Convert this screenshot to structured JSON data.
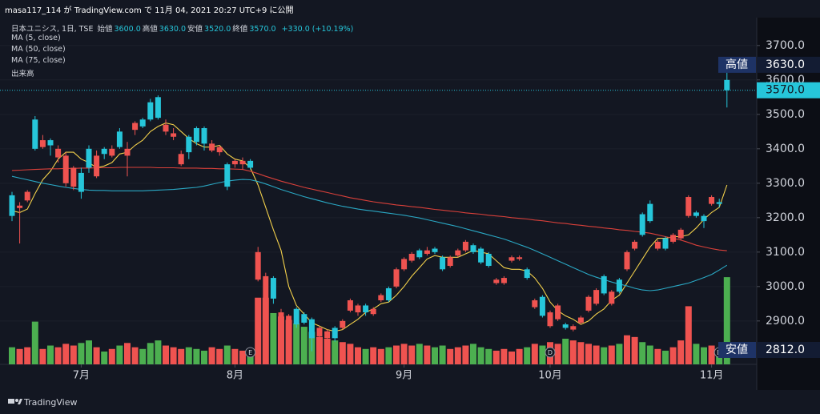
{
  "chart_data": {
    "type": "candlestick",
    "header": "masa117_114 が TradingView.com で 11月 04, 2021 20:27 UTC+9 に公開",
    "symbol": "日本ユニシス, 1日, TSE",
    "ohlc_legend": [
      {
        "label": "始値",
        "value_label": "3600.0"
      },
      {
        "label": "高値",
        "value_label": "3630.0"
      },
      {
        "label": "安値",
        "value_label": "3520.0"
      },
      {
        "label": "終値",
        "value_label": "3570.0"
      }
    ],
    "change": "+330.0 (+10.19%)",
    "footer": "TradingView",
    "up_color": "#ef5350",
    "down_color": "#26c6da",
    "grid": true,
    "ylim": [
      2774,
      3767
    ],
    "yticks": [
      {
        "value": 2900,
        "label": "2900.0"
      },
      {
        "value": 3000,
        "label": "3000.0"
      },
      {
        "value": 3100,
        "label": "3100.0"
      },
      {
        "value": 3200,
        "label": "3200.0"
      },
      {
        "value": 3300,
        "label": "3300.0"
      },
      {
        "value": 3400,
        "label": "3400.0"
      },
      {
        "value": 3500,
        "label": "3500.0"
      },
      {
        "value": 3600,
        "label": "3600.0"
      },
      {
        "value": 3700,
        "label": "3700.0"
      }
    ],
    "xticks": [
      {
        "value": 9,
        "label": "7月"
      },
      {
        "value": 29,
        "label": "8月"
      },
      {
        "value": 51,
        "label": "9月"
      },
      {
        "value": 70,
        "label": "10月"
      },
      {
        "value": 91,
        "label": "11月"
      }
    ],
    "candles": [
      [
        3265,
        3275,
        3190,
        3205
      ],
      [
        3228,
        3245,
        3125,
        3235
      ],
      [
        3250,
        3280,
        3245,
        3275
      ],
      [
        3485,
        3495,
        3395,
        3400
      ],
      [
        3405,
        3440,
        3400,
        3425
      ],
      [
        3425,
        3430,
        3380,
        3410
      ],
      [
        3375,
        3410,
        3360,
        3400
      ],
      [
        3300,
        3390,
        3290,
        3380
      ],
      [
        3290,
        3350,
        3280,
        3345
      ],
      [
        3330,
        3345,
        3255,
        3275
      ],
      [
        3400,
        3410,
        3330,
        3345
      ],
      [
        3320,
        3395,
        3315,
        3380
      ],
      [
        3400,
        3405,
        3370,
        3385
      ],
      [
        3380,
        3410,
        3375,
        3400
      ],
      [
        3450,
        3460,
        3400,
        3405
      ],
      [
        3380,
        3420,
        3320,
        3400
      ],
      [
        3455,
        3480,
        3440,
        3475
      ],
      [
        3485,
        3490,
        3460,
        3465
      ],
      [
        3535,
        3545,
        3480,
        3485
      ],
      [
        3550,
        3555,
        3485,
        3490
      ],
      [
        3450,
        3485,
        3440,
        3470
      ],
      [
        3435,
        3460,
        3425,
        3445
      ],
      [
        3355,
        3395,
        3350,
        3385
      ],
      [
        3435,
        3440,
        3370,
        3390
      ],
      [
        3460,
        3465,
        3410,
        3420
      ],
      [
        3460,
        3465,
        3395,
        3415
      ],
      [
        3395,
        3425,
        3390,
        3415
      ],
      [
        3390,
        3410,
        3380,
        3405
      ],
      [
        3355,
        3360,
        3280,
        3290
      ],
      [
        3355,
        3370,
        3345,
        3365
      ],
      [
        3355,
        3375,
        3340,
        3365
      ],
      [
        3365,
        3370,
        3340,
        3345
      ],
      [
        3020,
        3115,
        3015,
        3100
      ],
      [
        2960,
        3040,
        2955,
        3030
      ],
      [
        3025,
        3030,
        2950,
        2965
      ],
      [
        2900,
        2935,
        2895,
        2925
      ],
      [
        2890,
        2920,
        2885,
        2915
      ],
      [
        2935,
        2940,
        2880,
        2890
      ],
      [
        2920,
        2925,
        2890,
        2895
      ],
      [
        2905,
        2910,
        2812,
        2850
      ],
      [
        2855,
        2885,
        2845,
        2880
      ],
      [
        2850,
        2875,
        2840,
        2870
      ],
      [
        2880,
        2885,
        2840,
        2850
      ],
      [
        2880,
        2905,
        2875,
        2900
      ],
      [
        2930,
        2965,
        2925,
        2960
      ],
      [
        2925,
        2950,
        2915,
        2945
      ],
      [
        2945,
        2950,
        2915,
        2925
      ],
      [
        2920,
        2940,
        2915,
        2935
      ],
      [
        2960,
        2980,
        2955,
        2975
      ],
      [
        2995,
        3000,
        2955,
        2960
      ],
      [
        3000,
        3055,
        2995,
        3050
      ],
      [
        3050,
        3085,
        3045,
        3080
      ],
      [
        3075,
        3100,
        3070,
        3095
      ],
      [
        3105,
        3110,
        3080,
        3085
      ],
      [
        3095,
        3115,
        3090,
        3105
      ],
      [
        3110,
        3115,
        3095,
        3100
      ],
      [
        3085,
        3090,
        3045,
        3050
      ],
      [
        3060,
        3090,
        3055,
        3085
      ],
      [
        3090,
        3110,
        3085,
        3105
      ],
      [
        3105,
        3135,
        3100,
        3130
      ],
      [
        3120,
        3125,
        3095,
        3100
      ],
      [
        3110,
        3115,
        3065,
        3070
      ],
      [
        3095,
        3100,
        3055,
        3060
      ],
      [
        3010,
        3025,
        3005,
        3020
      ],
      [
        3010,
        3030,
        3005,
        3025
      ],
      [
        3075,
        3090,
        3070,
        3085
      ],
      [
        3080,
        3090,
        3075,
        3085
      ],
      [
        3050,
        3055,
        3020,
        3025
      ],
      [
        2940,
        2965,
        2935,
        2960
      ],
      [
        2970,
        2975,
        2910,
        2915
      ],
      [
        2885,
        2930,
        2880,
        2925
      ],
      [
        2905,
        2950,
        2900,
        2945
      ],
      [
        2890,
        2895,
        2875,
        2880
      ],
      [
        2875,
        2890,
        2870,
        2885
      ],
      [
        2895,
        2915,
        2890,
        2910
      ],
      [
        2930,
        2975,
        2925,
        2970
      ],
      [
        2950,
        2995,
        2945,
        2990
      ],
      [
        3030,
        3035,
        2975,
        2980
      ],
      [
        2950,
        2990,
        2945,
        2985
      ],
      [
        3020,
        3025,
        2980,
        2985
      ],
      [
        3050,
        3105,
        3045,
        3100
      ],
      [
        3110,
        3135,
        3105,
        3130
      ],
      [
        3210,
        3215,
        3145,
        3150
      ],
      [
        3240,
        3250,
        3185,
        3190
      ],
      [
        3110,
        3135,
        3105,
        3130
      ],
      [
        3140,
        3145,
        3105,
        3110
      ],
      [
        3130,
        3155,
        3125,
        3150
      ],
      [
        3140,
        3170,
        3135,
        3165
      ],
      [
        3205,
        3265,
        3200,
        3260
      ],
      [
        3215,
        3220,
        3200,
        3205
      ],
      [
        3205,
        3210,
        3170,
        3190
      ],
      [
        3240,
        3265,
        3235,
        3260
      ],
      [
        3245,
        3255,
        3230,
        3240
      ],
      [
        3600,
        3630,
        3520,
        3570
      ]
    ],
    "ma": [
      {
        "name": "MA (5, close)",
        "color": "#f2d04b",
        "values": [
          3220,
          3215,
          3225,
          3270,
          3310,
          3335,
          3370,
          3390,
          3390,
          3370,
          3360,
          3345,
          3350,
          3360,
          3385,
          3390,
          3410,
          3425,
          3450,
          3465,
          3475,
          3470,
          3450,
          3430,
          3415,
          3405,
          3405,
          3410,
          3385,
          3370,
          3365,
          3345,
          3295,
          3230,
          3165,
          3105,
          3000,
          2945,
          2920,
          2895,
          2885,
          2875,
          2870,
          2875,
          2890,
          2905,
          2925,
          2935,
          2950,
          2955,
          2975,
          3000,
          3030,
          3055,
          3080,
          3090,
          3085,
          3085,
          3085,
          3095,
          3105,
          3100,
          3095,
          3075,
          3055,
          3050,
          3050,
          3045,
          3025,
          2995,
          2955,
          2930,
          2915,
          2905,
          2890,
          2900,
          2920,
          2935,
          2960,
          2975,
          3010,
          3045,
          3080,
          3115,
          3140,
          3140,
          3145,
          3145,
          3150,
          3170,
          3195,
          3215,
          3230,
          3295
        ]
      },
      {
        "name": "MA (50, close)",
        "color": "#2aa8c4",
        "values": [
          3320,
          3315,
          3310,
          3305,
          3300,
          3296,
          3292,
          3288,
          3285,
          3282,
          3280,
          3279,
          3279,
          3278,
          3278,
          3278,
          3278,
          3278,
          3279,
          3280,
          3281,
          3282,
          3284,
          3286,
          3288,
          3292,
          3297,
          3302,
          3306,
          3309,
          3311,
          3310,
          3305,
          3298,
          3290,
          3282,
          3275,
          3268,
          3261,
          3255,
          3249,
          3243,
          3238,
          3233,
          3229,
          3225,
          3222,
          3219,
          3216,
          3213,
          3210,
          3207,
          3203,
          3199,
          3194,
          3189,
          3184,
          3179,
          3174,
          3168,
          3162,
          3156,
          3150,
          3144,
          3138,
          3130,
          3122,
          3114,
          3105,
          3095,
          3085,
          3075,
          3065,
          3055,
          3045,
          3035,
          3027,
          3020,
          3013,
          3007,
          3002,
          2995,
          2990,
          2988,
          2990,
          2995,
          3000,
          3005,
          3010,
          3018,
          3026,
          3035,
          3048,
          3062
        ]
      },
      {
        "name": "MA (75, close)",
        "color": "#d9403a",
        "values": [
          3337,
          3338,
          3339,
          3340,
          3341,
          3342,
          3342,
          3343,
          3343,
          3344,
          3344,
          3345,
          3345,
          3345,
          3346,
          3346,
          3346,
          3346,
          3346,
          3345,
          3345,
          3345,
          3344,
          3344,
          3344,
          3343,
          3343,
          3342,
          3342,
          3341,
          3340,
          3335,
          3328,
          3320,
          3313,
          3306,
          3300,
          3294,
          3288,
          3283,
          3278,
          3273,
          3268,
          3263,
          3258,
          3254,
          3250,
          3246,
          3243,
          3240,
          3237,
          3235,
          3232,
          3230,
          3227,
          3224,
          3222,
          3219,
          3217,
          3214,
          3212,
          3210,
          3207,
          3205,
          3203,
          3200,
          3198,
          3196,
          3193,
          3191,
          3188,
          3185,
          3183,
          3180,
          3178,
          3175,
          3173,
          3170,
          3168,
          3165,
          3163,
          3160,
          3158,
          3155,
          3150,
          3145,
          3140,
          3135,
          3128,
          3120,
          3115,
          3110,
          3106,
          3104
        ]
      }
    ],
    "volume": {
      "name": "出来高",
      "axis": "y2",
      "up_color": "#ef5350",
      "down_color": "#4caf50",
      "values": [
        20,
        18,
        20,
        50,
        18,
        22,
        20,
        24,
        22,
        25,
        28,
        20,
        15,
        18,
        22,
        25,
        20,
        18,
        25,
        28,
        22,
        20,
        18,
        20,
        18,
        16,
        20,
        18,
        22,
        18,
        16,
        18,
        78,
        78,
        60,
        56,
        52,
        48,
        44,
        38,
        32,
        30,
        28,
        26,
        24,
        20,
        18,
        20,
        18,
        20,
        22,
        24,
        22,
        24,
        22,
        20,
        22,
        18,
        20,
        22,
        24,
        20,
        18,
        16,
        18,
        15,
        18,
        20,
        24,
        22,
        26,
        24,
        30,
        28,
        26,
        24,
        22,
        20,
        22,
        24,
        34,
        32,
        26,
        22,
        18,
        16,
        20,
        28,
        68,
        24,
        20,
        22,
        18,
        102
      ]
    },
    "y2lim": [
      0,
      400
    ],
    "last_price": {
      "value": 3570,
      "value_label": "3570.0",
      "color": "#26c6da"
    },
    "annotations": [
      {
        "label": "高値",
        "value": 3630,
        "value_label": "3630.0"
      },
      {
        "label": "安値",
        "value": 2812,
        "value_label": "2812.0"
      }
    ],
    "events": [
      {
        "label": "E",
        "index": 31
      },
      {
        "label": "D",
        "index": 70
      },
      {
        "label": "D",
        "index": 92
      }
    ]
  }
}
